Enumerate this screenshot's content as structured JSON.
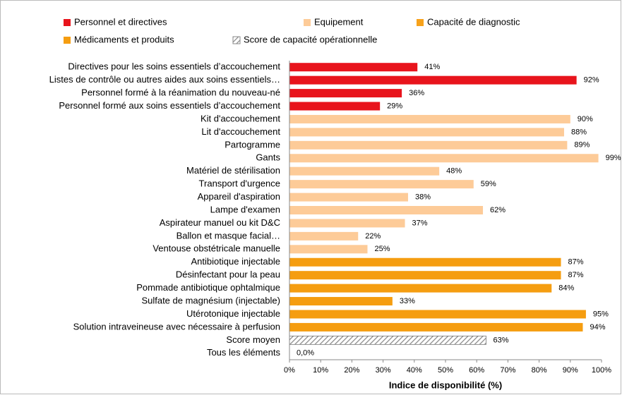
{
  "chart_data": {
    "type": "bar",
    "orientation": "horizontal",
    "categories": [
      "Directives pour les soins essentiels d’accouchement",
      "Listes de contrôle ou autres aides aux soins essentiels…",
      "Personnel formé à la réanimation du nouveau-né",
      "Personnel formé aux soins essentiels d’accouchement",
      "Kit d'accouchement",
      "Lit d'accouchement",
      "Partogramme",
      "Gants",
      "Matériel de stérilisation",
      "Transport d'urgence",
      "Appareil d'aspiration",
      "Lampe d'examen",
      "Aspirateur manuel ou kit D&C",
      "Ballon et masque facial…",
      "Ventouse obstétricale manuelle",
      "Antibiotique injectable",
      "Désinfectant pour la peau",
      "Pommade antibiotique ophtalmique",
      "Sulfate de magnésium (injectable)",
      "Utérotonique injectable",
      "Solution intraveineuse avec nécessaire à perfusion",
      "Score moyen",
      "Tous les éléments"
    ],
    "series": [
      {
        "name": "Personnel et directives",
        "color": "#e8141c",
        "values": [
          41,
          92,
          36,
          29,
          null,
          null,
          null,
          null,
          null,
          null,
          null,
          null,
          null,
          null,
          null,
          null,
          null,
          null,
          null,
          null,
          null,
          null,
          null
        ],
        "value_labels": [
          "41%",
          "92%",
          "36%",
          "29%",
          null,
          null,
          null,
          null,
          null,
          null,
          null,
          null,
          null,
          null,
          null,
          null,
          null,
          null,
          null,
          null,
          null,
          null,
          null
        ]
      },
      {
        "name": "Equipement",
        "color": "#fdcb98",
        "values": [
          null,
          null,
          null,
          null,
          90,
          88,
          89,
          99,
          48,
          59,
          38,
          62,
          37,
          22,
          25,
          null,
          null,
          null,
          null,
          null,
          null,
          null,
          null
        ],
        "value_labels": [
          null,
          null,
          null,
          null,
          "90%",
          "88%",
          "89%",
          "99%",
          "48%",
          "59%",
          "38%",
          "62%",
          "37%",
          "22%",
          "25%",
          null,
          null,
          null,
          null,
          null,
          null,
          null,
          null
        ]
      },
      {
        "name": "Capacité de diagnostic",
        "color": "#f7a21b",
        "values": [
          null,
          null,
          null,
          null,
          null,
          null,
          null,
          null,
          null,
          null,
          null,
          null,
          null,
          null,
          null,
          null,
          null,
          null,
          null,
          null,
          null,
          null,
          null
        ],
        "value_labels": [
          null,
          null,
          null,
          null,
          null,
          null,
          null,
          null,
          null,
          null,
          null,
          null,
          null,
          null,
          null,
          null,
          null,
          null,
          null,
          null,
          null,
          null,
          null
        ]
      },
      {
        "name": "Médicaments et produits",
        "color": "#f59d10",
        "values": [
          null,
          null,
          null,
          null,
          null,
          null,
          null,
          null,
          null,
          null,
          null,
          null,
          null,
          null,
          null,
          87,
          87,
          84,
          33,
          95,
          94,
          null,
          null
        ],
        "value_labels": [
          null,
          null,
          null,
          null,
          null,
          null,
          null,
          null,
          null,
          null,
          null,
          null,
          null,
          null,
          null,
          "87%",
          "87%",
          "84%",
          "33%",
          "95%",
          "94%",
          null,
          null
        ]
      },
      {
        "name": "Score de capacité opérationnelle",
        "color": "#8a8a8a",
        "pattern": "hatch",
        "values": [
          null,
          null,
          null,
          null,
          null,
          null,
          null,
          null,
          null,
          null,
          null,
          null,
          null,
          null,
          null,
          null,
          null,
          null,
          null,
          null,
          null,
          63,
          0
        ],
        "value_labels": [
          null,
          null,
          null,
          null,
          null,
          null,
          null,
          null,
          null,
          null,
          null,
          null,
          null,
          null,
          null,
          null,
          null,
          null,
          null,
          null,
          null,
          "63%",
          "0,0%"
        ]
      }
    ],
    "xlabel": "Indice de disponibilité (%)",
    "xlim": [
      0,
      100
    ],
    "xticks": [
      {
        "value": 0,
        "label": "0%"
      },
      {
        "value": 10,
        "label": "10%"
      },
      {
        "value": 20,
        "label": "20%"
      },
      {
        "value": 30,
        "label": "30%"
      },
      {
        "value": 40,
        "label": "40%"
      },
      {
        "value": 50,
        "label": "50%"
      },
      {
        "value": 60,
        "label": "60%"
      },
      {
        "value": 70,
        "label": "70%"
      },
      {
        "value": 80,
        "label": "80%"
      },
      {
        "value": 90,
        "label": "90%"
      },
      {
        "value": 100,
        "label": "100%"
      }
    ],
    "grid": false,
    "legend": "top"
  }
}
